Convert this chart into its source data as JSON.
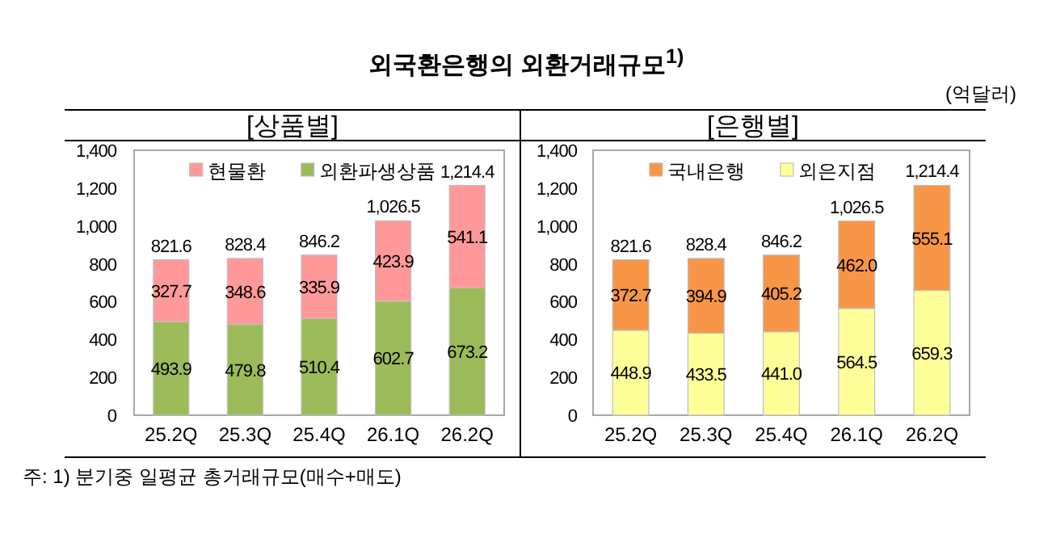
{
  "chart_data": [
    {
      "type": "bar",
      "stacked": true,
      "title": "[상품별]",
      "categories": [
        "25.2Q",
        "25.3Q",
        "25.4Q",
        "26.1Q",
        "26.2Q"
      ],
      "series": [
        {
          "name": "외환파생상품",
          "color": "#9bbb59",
          "values": [
            493.9,
            479.8,
            510.4,
            602.7,
            673.2
          ]
        },
        {
          "name": "현물환",
          "color": "#ff9999",
          "values": [
            327.7,
            348.6,
            335.9,
            423.9,
            541.1
          ]
        }
      ],
      "totals": [
        "821.6",
        "828.4",
        "846.2",
        "1,026.5",
        "1,214.4"
      ],
      "data_labels": true,
      "ylim": [
        0,
        1400
      ],
      "yticks": [
        0,
        200,
        400,
        600,
        {
          "value": 800,
          "label": "800"
        },
        {
          "value": 1000,
          "label": "1,000"
        },
        {
          "value": 1200,
          "label": "1,200"
        },
        {
          "value": 1400,
          "label": "1,400"
        }
      ],
      "grid": false,
      "legend": "top",
      "annotations": [
        "외국환은행의 외환거래규모$^{1)}$",
        "(억달러)",
        "주: 1) 분기중 일평균 총거래규모(매수+매도)"
      ]
    },
    {
      "type": "bar",
      "stacked": true,
      "title": "[은행별]",
      "categories": [
        "25.2Q",
        "25.3Q",
        "25.4Q",
        "26.1Q",
        "26.2Q"
      ],
      "series": [
        {
          "name": "외은지점",
          "color": "#ffff99",
          "values": [
            448.9,
            433.5,
            441.0,
            564.5,
            659.3
          ],
          "value_labels": [
            "448.9",
            "433.5",
            "441.0",
            "564.5",
            "659.3"
          ]
        },
        {
          "name": "국내은행",
          "color": "#f79646",
          "values": [
            372.7,
            394.9,
            405.2,
            462.0,
            555.1
          ],
          "value_labels": [
            "372.7",
            "394.9",
            "405.2",
            "462.0",
            "555.1"
          ]
        }
      ],
      "totals": [
        "821.6",
        "828.4",
        "846.2",
        "1,026.5",
        "1,214.4"
      ],
      "ylim": [
        0,
        1400
      ],
      "yticks": [
        0,
        200,
        400,
        600,
        {
          "value": 800,
          "label": "800"
        },
        {
          "value": 1000,
          "label": "1,000"
        },
        {
          "value": 1200,
          "label": "1,200"
        },
        {
          "value": 1400,
          "label": "1,400"
        }
      ],
      "grid": false,
      "legend": "top"
    }
  ]
}
